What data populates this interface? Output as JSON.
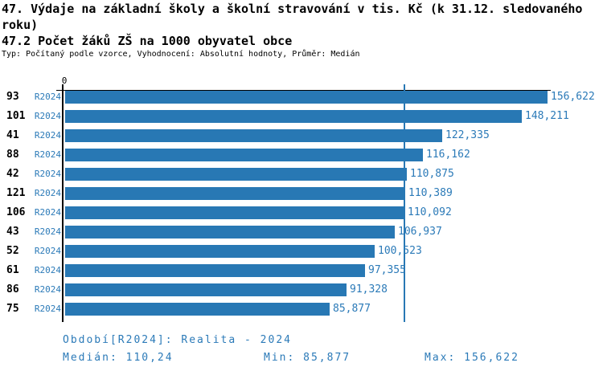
{
  "header": {
    "title": "47. Výdaje na základní školy a školní stravování v tis. Kč (k 31.12. sledovaného roku)",
    "subtitle": "47.2 Počet žáků ZŠ na 1000 obyvatel obce",
    "meta": "Typ: Počítaný podle vzorce, Vyhodnocení: Absolutní hodnoty, Průměr: Medián"
  },
  "chart_data": {
    "type": "bar",
    "orientation": "horizontal",
    "title": "47.2 Počet žáků ZŠ na 1000 obyvatel obce",
    "axis_zero_label": "0",
    "series_name": "R2024",
    "categories": [
      "93",
      "101",
      "41",
      "88",
      "42",
      "121",
      "106",
      "43",
      "52",
      "61",
      "86",
      "75"
    ],
    "values": [
      156.622,
      148.211,
      122.335,
      116.162,
      110.875,
      110.389,
      110.092,
      106.937,
      100.523,
      97.355,
      91.328,
      85.877
    ],
    "value_labels": [
      "156,622",
      "148,211",
      "122,335",
      "116,162",
      "110,875",
      "110,389",
      "110,092",
      "106,937",
      "100,523",
      "97,355",
      "91,328",
      "85,877"
    ],
    "xlim": [
      0,
      156.622
    ],
    "median": 110.24,
    "grid": false,
    "legend": false,
    "colors": {
      "bar": "#2878b4",
      "accent_text": "#2b7ab8",
      "axis": "#000000"
    }
  },
  "footer": {
    "period": "Období[R2024]: Realita - 2024",
    "median": "Medián: 110,24",
    "min": "Min: 85,877",
    "max": "Max: 156,622"
  }
}
